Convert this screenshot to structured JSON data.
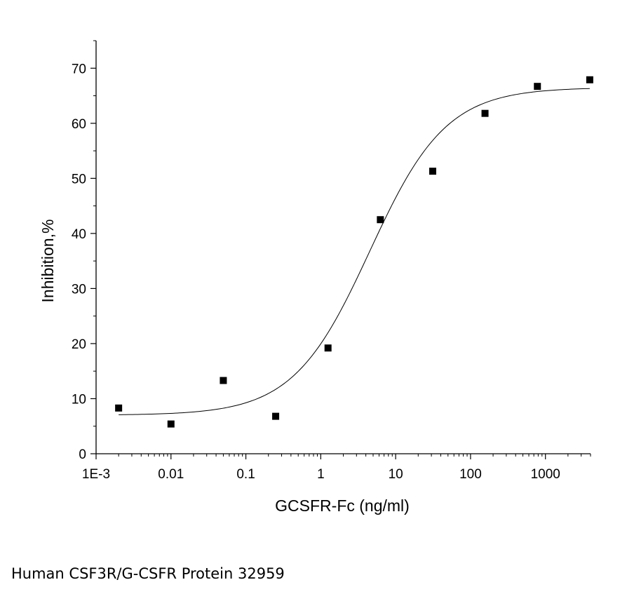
{
  "chart_data": {
    "type": "scatter",
    "xlabel": "GCSFR-Fc (ng/ml)",
    "ylabel": "Inhibition,%",
    "xscale": "log",
    "xlim": [
      0.001,
      4000
    ],
    "ylim": [
      0,
      75
    ],
    "x_ticks": [
      {
        "value": 0.001,
        "label": "1E-3"
      },
      {
        "value": 0.01,
        "label": "0.01"
      },
      {
        "value": 0.1,
        "label": "0.1"
      },
      {
        "value": 1,
        "label": "1"
      },
      {
        "value": 10,
        "label": "10"
      },
      {
        "value": 100,
        "label": "100"
      },
      {
        "value": 1000,
        "label": "1000"
      }
    ],
    "y_ticks": [
      0,
      10,
      20,
      30,
      40,
      50,
      60,
      70
    ],
    "grid": false,
    "marker": "square",
    "points": [
      {
        "x": 0.002,
        "y": 8.3
      },
      {
        "x": 0.01,
        "y": 5.4
      },
      {
        "x": 0.05,
        "y": 13.3
      },
      {
        "x": 0.25,
        "y": 6.8
      },
      {
        "x": 1.25,
        "y": 19.2
      },
      {
        "x": 6.25,
        "y": 42.5
      },
      {
        "x": 31.25,
        "y": 51.3
      },
      {
        "x": 156,
        "y": 61.8
      },
      {
        "x": 781,
        "y": 66.7
      },
      {
        "x": 3906,
        "y": 67.9
      }
    ],
    "fit_curve": {
      "model": "4PL",
      "bottom": 7.0,
      "top": 66.5,
      "ec50": 4.5,
      "hill": 0.85
    }
  },
  "caption": "Human CSF3R/G-CSFR Protein 32959"
}
